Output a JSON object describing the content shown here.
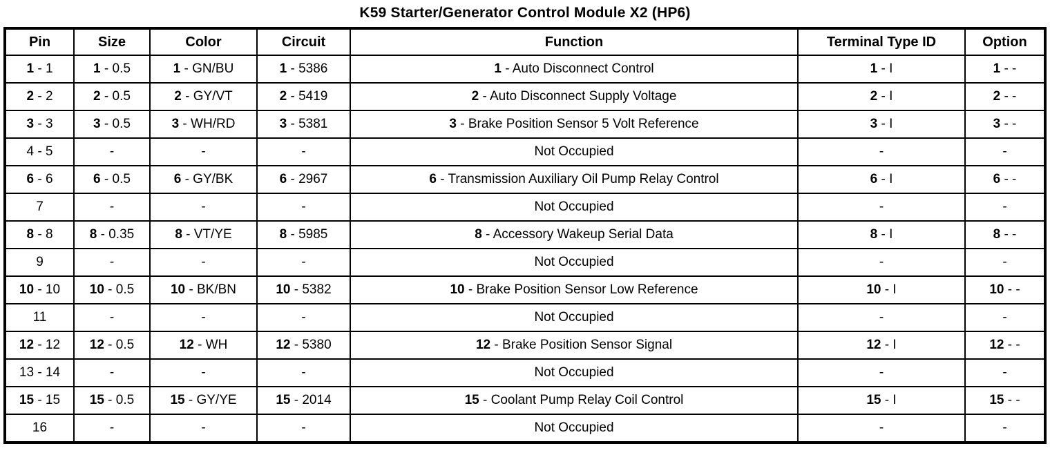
{
  "title": "K59 Starter/Generator Control Module X2 (HP6)",
  "table": {
    "headers": [
      "Pin",
      "Size",
      "Color",
      "Circuit",
      "Function",
      "Terminal Type ID",
      "Option"
    ],
    "rows": [
      {
        "cells": [
          {
            "b": "1",
            "r": " - 1"
          },
          {
            "b": "1",
            "r": " - 0.5"
          },
          {
            "b": "1",
            "r": " - GN/BU"
          },
          {
            "b": "1",
            "r": " - 5386"
          },
          {
            "b": "1",
            "r": " - Auto Disconnect Control"
          },
          {
            "b": "1",
            "r": " - I"
          },
          {
            "b": "1",
            "r": " - -"
          }
        ]
      },
      {
        "cells": [
          {
            "b": "2",
            "r": " - 2"
          },
          {
            "b": "2",
            "r": " - 0.5"
          },
          {
            "b": "2",
            "r": " - GY/VT"
          },
          {
            "b": "2",
            "r": " - 5419"
          },
          {
            "b": "2",
            "r": " - Auto Disconnect Supply Voltage"
          },
          {
            "b": "2",
            "r": " - I"
          },
          {
            "b": "2",
            "r": " - -"
          }
        ]
      },
      {
        "cells": [
          {
            "b": "3",
            "r": " - 3"
          },
          {
            "b": "3",
            "r": " - 0.5"
          },
          {
            "b": "3",
            "r": " - WH/RD"
          },
          {
            "b": "3",
            "r": " - 5381"
          },
          {
            "b": "3",
            "r": " - Brake Position Sensor 5 Volt Reference"
          },
          {
            "b": "3",
            "r": " - I"
          },
          {
            "b": "3",
            "r": " - -"
          }
        ]
      },
      {
        "cells": [
          {
            "r": "4 - 5"
          },
          {
            "r": "-"
          },
          {
            "r": "-"
          },
          {
            "r": "-"
          },
          {
            "r": "Not Occupied"
          },
          {
            "r": "-"
          },
          {
            "r": "-"
          }
        ]
      },
      {
        "cells": [
          {
            "b": "6",
            "r": " - 6"
          },
          {
            "b": "6",
            "r": " - 0.5"
          },
          {
            "b": "6",
            "r": " - GY/BK"
          },
          {
            "b": "6",
            "r": " - 2967"
          },
          {
            "b": "6",
            "r": " - Transmission Auxiliary Oil Pump Relay Control"
          },
          {
            "b": "6",
            "r": " - I"
          },
          {
            "b": "6",
            "r": " - -"
          }
        ]
      },
      {
        "cells": [
          {
            "r": "7"
          },
          {
            "r": "-"
          },
          {
            "r": "-"
          },
          {
            "r": "-"
          },
          {
            "r": "Not Occupied"
          },
          {
            "r": "-"
          },
          {
            "r": "-"
          }
        ]
      },
      {
        "cells": [
          {
            "b": "8",
            "r": " - 8"
          },
          {
            "b": "8",
            "r": " - 0.35"
          },
          {
            "b": "8",
            "r": " - VT/YE"
          },
          {
            "b": "8",
            "r": " - 5985"
          },
          {
            "b": "8",
            "r": " - Accessory Wakeup Serial Data"
          },
          {
            "b": "8",
            "r": " - I"
          },
          {
            "b": "8",
            "r": " - -"
          }
        ]
      },
      {
        "cells": [
          {
            "r": "9"
          },
          {
            "r": "-"
          },
          {
            "r": "-"
          },
          {
            "r": "-"
          },
          {
            "r": "Not Occupied"
          },
          {
            "r": "-"
          },
          {
            "r": "-"
          }
        ]
      },
      {
        "cells": [
          {
            "b": "10",
            "r": " - 10"
          },
          {
            "b": "10",
            "r": " - 0.5"
          },
          {
            "b": "10",
            "r": " - BK/BN"
          },
          {
            "b": "10",
            "r": " - 5382"
          },
          {
            "b": "10",
            "r": " - Brake Position Sensor Low Reference"
          },
          {
            "b": "10",
            "r": " - I"
          },
          {
            "b": "10",
            "r": " - -"
          }
        ]
      },
      {
        "cells": [
          {
            "r": "11"
          },
          {
            "r": "-"
          },
          {
            "r": "-"
          },
          {
            "r": "-"
          },
          {
            "r": "Not Occupied"
          },
          {
            "r": "-"
          },
          {
            "r": "-"
          }
        ]
      },
      {
        "cells": [
          {
            "b": "12",
            "r": " - 12"
          },
          {
            "b": "12",
            "r": " - 0.5"
          },
          {
            "b": "12",
            "r": " - WH"
          },
          {
            "b": "12",
            "r": " - 5380"
          },
          {
            "b": "12",
            "r": " - Brake Position Sensor Signal"
          },
          {
            "b": "12",
            "r": " - I"
          },
          {
            "b": "12",
            "r": " - -"
          }
        ]
      },
      {
        "cells": [
          {
            "r": "13 - 14"
          },
          {
            "r": "-"
          },
          {
            "r": "-"
          },
          {
            "r": "-"
          },
          {
            "r": "Not Occupied"
          },
          {
            "r": "-"
          },
          {
            "r": "-"
          }
        ]
      },
      {
        "cells": [
          {
            "b": "15",
            "r": " - 15"
          },
          {
            "b": "15",
            "r": " - 0.5"
          },
          {
            "b": "15",
            "r": " - GY/YE"
          },
          {
            "b": "15",
            "r": " - 2014"
          },
          {
            "b": "15",
            "r": " - Coolant Pump Relay Coil Control"
          },
          {
            "b": "15",
            "r": " - I"
          },
          {
            "b": "15",
            "r": " - -"
          }
        ]
      },
      {
        "cells": [
          {
            "r": "16"
          },
          {
            "r": "-"
          },
          {
            "r": "-"
          },
          {
            "r": "-"
          },
          {
            "r": "Not Occupied"
          },
          {
            "r": "-"
          },
          {
            "r": "-"
          }
        ]
      }
    ]
  }
}
